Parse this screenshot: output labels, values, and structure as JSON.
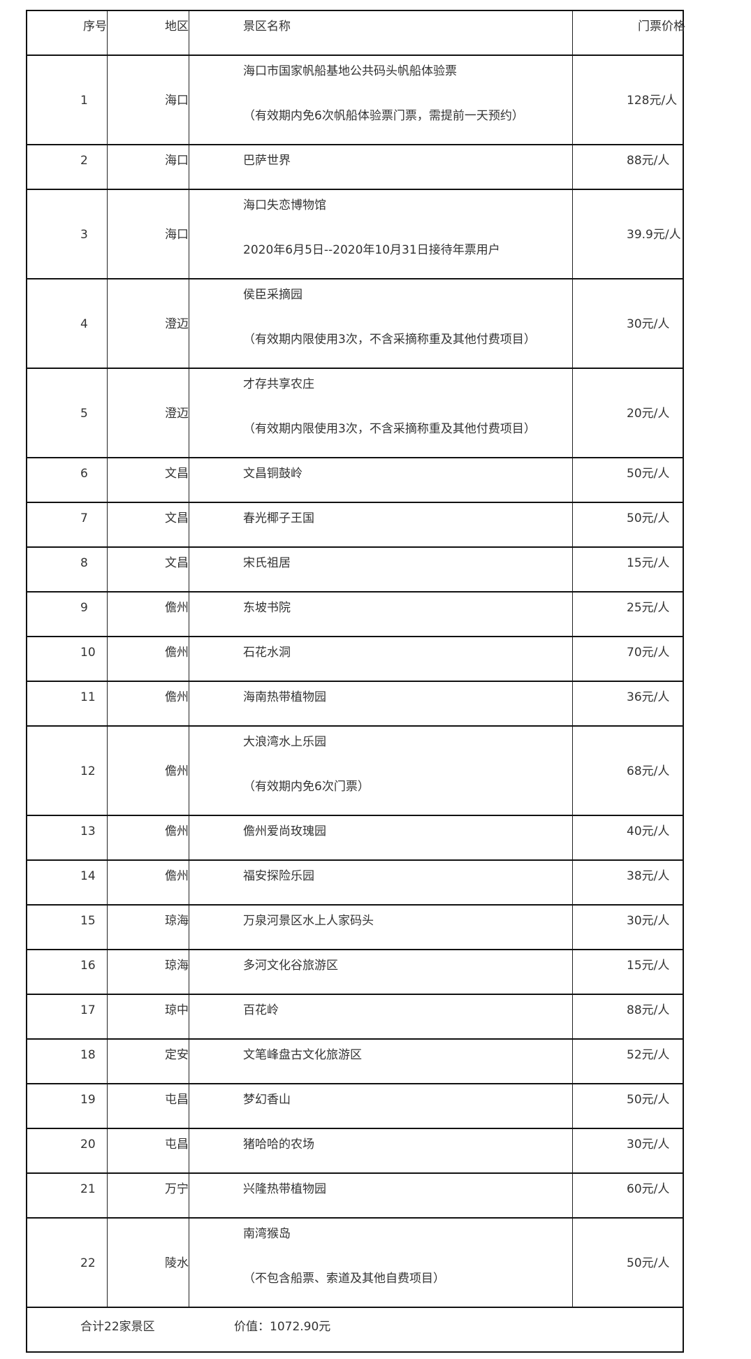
{
  "header": {
    "no": "序号",
    "region": "地区",
    "name": "景区名称",
    "price": "门票价格"
  },
  "rows": [
    {
      "no": "1",
      "region": "海口",
      "name": "海口市国家帆船基地公共码头帆船体验票",
      "note": "（有效期内免6次帆船体验票门票，需提前一天预约）",
      "price": "128元/人"
    },
    {
      "no": "2",
      "region": "海口",
      "name": "巴萨世界",
      "price": "88元/人"
    },
    {
      "no": "3",
      "region": "海口",
      "name": "海口失恋博物馆",
      "note": "2020年6月5日--2020年10月31日接待年票用户",
      "price": "39.9元/人"
    },
    {
      "no": "4",
      "region": "澄迈",
      "name": "侯臣采摘园",
      "note": "（有效期内限使用3次，不含采摘称重及其他付费项目）",
      "price": "30元/人"
    },
    {
      "no": "5",
      "region": "澄迈",
      "name": "才存共享农庄",
      "note": "（有效期内限使用3次，不含采摘称重及其他付费项目）",
      "price": "20元/人"
    },
    {
      "no": "6",
      "region": "文昌",
      "name": "文昌铜鼓岭",
      "price": "50元/人"
    },
    {
      "no": "7",
      "region": "文昌",
      "name": "春光椰子王国",
      "price": "50元/人"
    },
    {
      "no": "8",
      "region": "文昌",
      "name": "宋氏祖居",
      "price": "15元/人"
    },
    {
      "no": "9",
      "region": "儋州",
      "name": "东坡书院",
      "price": "25元/人"
    },
    {
      "no": "10",
      "region": "儋州",
      "name": "石花水洞",
      "price": "70元/人"
    },
    {
      "no": "11",
      "region": "儋州",
      "name": "海南热带植物园",
      "price": "36元/人"
    },
    {
      "no": "12",
      "region": "儋州",
      "name": "大浪湾水上乐园",
      "note": "（有效期内免6次门票）",
      "price": "68元/人"
    },
    {
      "no": "13",
      "region": "儋州",
      "name": "儋州爱尚玫瑰园",
      "price": "40元/人"
    },
    {
      "no": "14",
      "region": "儋州",
      "name": "福安探险乐园",
      "price": "38元/人"
    },
    {
      "no": "15",
      "region": "琼海",
      "name": "万泉河景区水上人家码头",
      "price": "30元/人"
    },
    {
      "no": "16",
      "region": "琼海",
      "name": "多河文化谷旅游区",
      "price": "15元/人"
    },
    {
      "no": "17",
      "region": "琼中",
      "name": "百花岭",
      "price": "88元/人"
    },
    {
      "no": "18",
      "region": "定安",
      "name": "文笔峰盘古文化旅游区",
      "price": "52元/人"
    },
    {
      "no": "19",
      "region": "屯昌",
      "name": "梦幻香山",
      "price": "50元/人"
    },
    {
      "no": "20",
      "region": "屯昌",
      "name": "猪哈哈的农场",
      "price": "30元/人"
    },
    {
      "no": "21",
      "region": "万宁",
      "name": "兴隆热带植物园",
      "price": "60元/人"
    },
    {
      "no": "22",
      "region": "陵水",
      "name": "南湾猴岛",
      "note": "（不包含船票、索道及其他自费项目）",
      "price": "50元/人"
    }
  ],
  "footer": {
    "total": "合计22家景区",
    "value": "价值：1072.90元"
  }
}
